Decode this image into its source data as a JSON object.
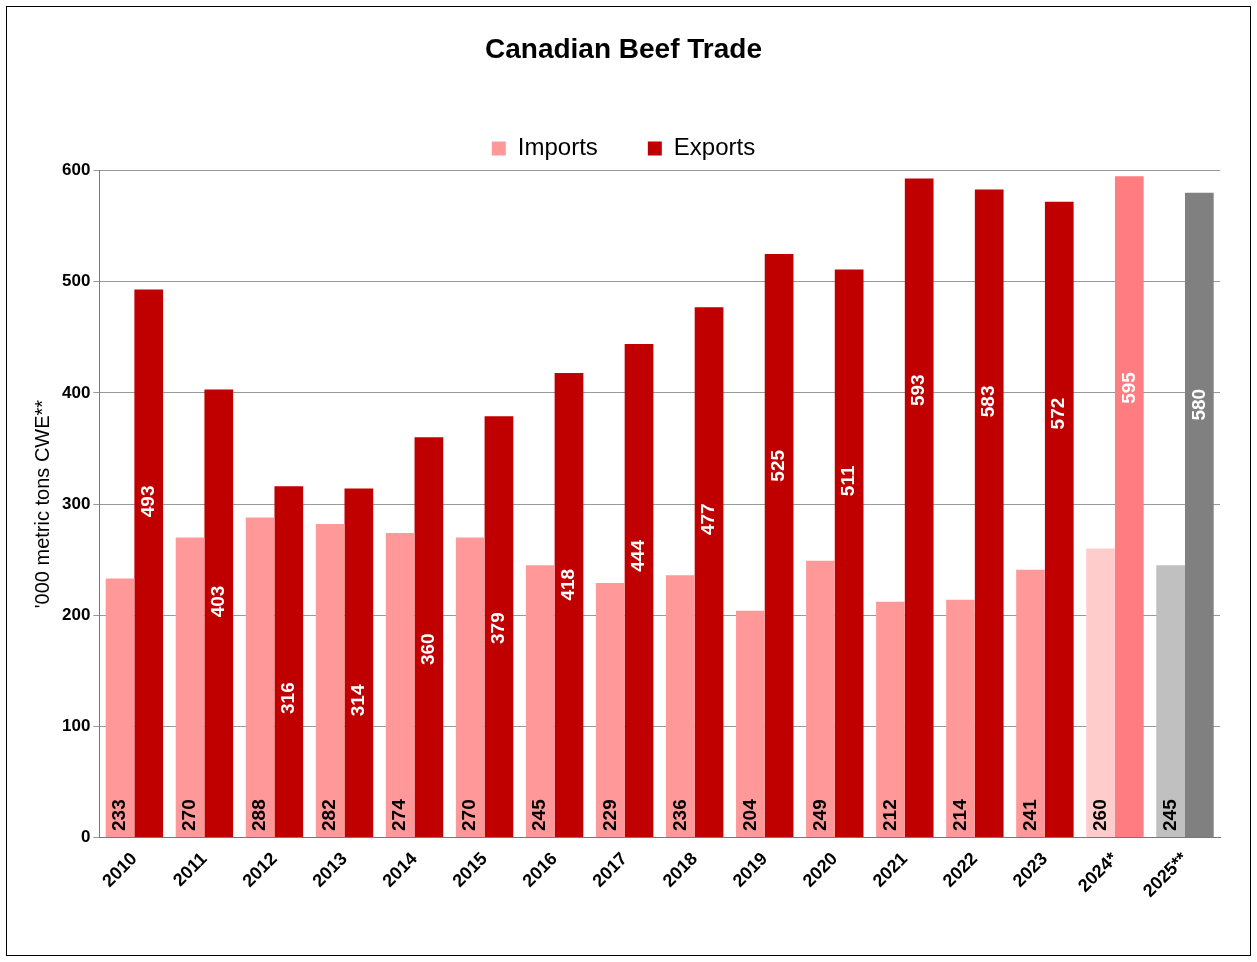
{
  "chart_data": {
    "type": "bar",
    "title": "Canadian Beef Trade",
    "ylabel": "'000 metric tons CWE**",
    "categories": [
      "2010",
      "2011",
      "2012",
      "2013",
      "2014",
      "2015",
      "2016",
      "2017",
      "2018",
      "2019",
      "2020",
      "2021",
      "2022",
      "2023",
      "2024*",
      "2025**"
    ],
    "series": [
      {
        "name": "Imports",
        "color": "#ff9999",
        "colors": [
          "#ff9999",
          "#ff9999",
          "#ff9999",
          "#ff9999",
          "#ff9999",
          "#ff9999",
          "#ff9999",
          "#ff9999",
          "#ff9999",
          "#ff9999",
          "#ff9999",
          "#ff9999",
          "#ff9999",
          "#ff9999",
          "#ffcccc",
          "#c0c0c0"
        ],
        "values": [
          233,
          270,
          288,
          282,
          274,
          270,
          245,
          229,
          236,
          204,
          249,
          212,
          214,
          241,
          260,
          245
        ]
      },
      {
        "name": "Exports",
        "color": "#c00000",
        "colors": [
          "#c00000",
          "#c00000",
          "#c00000",
          "#c00000",
          "#c00000",
          "#c00000",
          "#c00000",
          "#c00000",
          "#c00000",
          "#c00000",
          "#c00000",
          "#c00000",
          "#c00000",
          "#c00000",
          "#ff7c80",
          "#808080"
        ],
        "values": [
          493,
          403,
          316,
          314,
          360,
          379,
          418,
          444,
          477,
          525,
          511,
          593,
          583,
          572,
          595,
          580
        ]
      }
    ],
    "ylim": [
      0,
      600
    ],
    "yticks": [
      0,
      100,
      200,
      300,
      400,
      500,
      600
    ],
    "grid": "y",
    "legend": "top",
    "data_labels": true
  }
}
